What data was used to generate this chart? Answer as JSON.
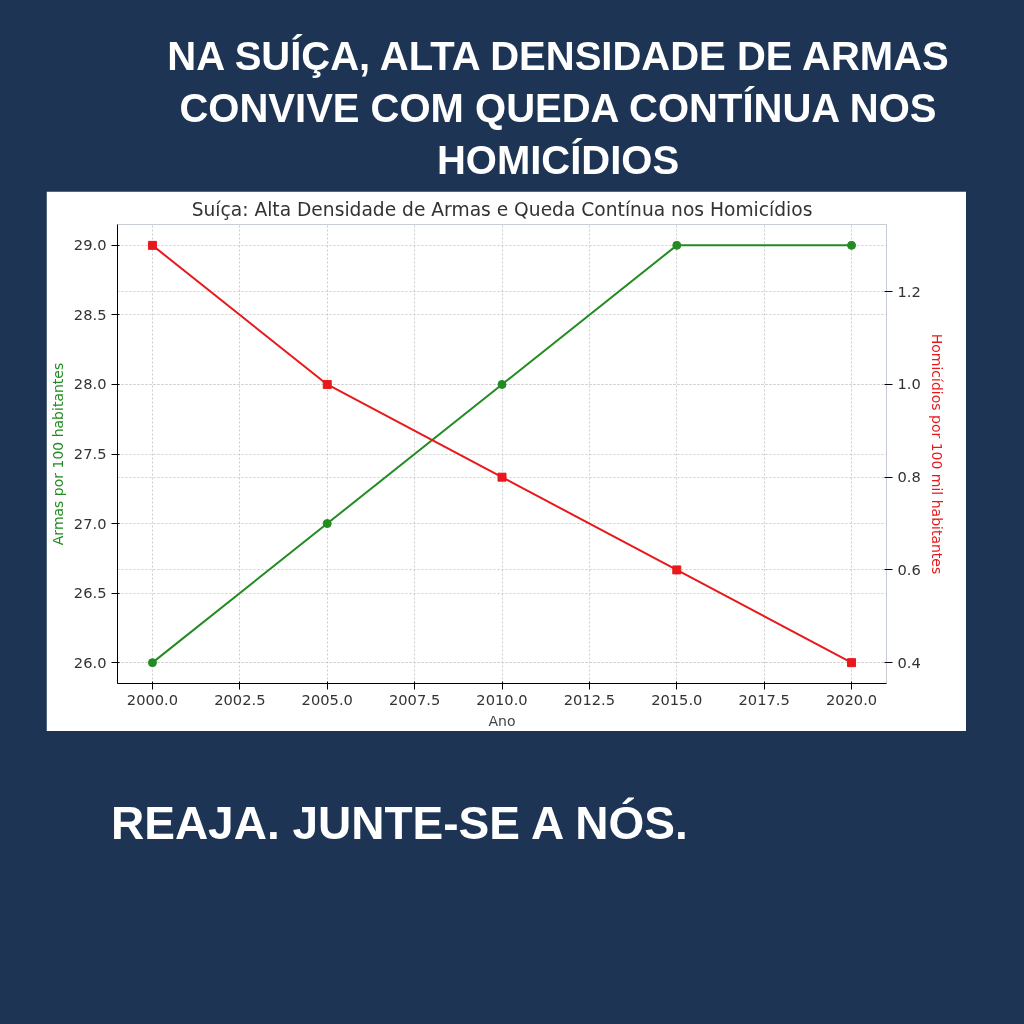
{
  "chart_data": {
    "type": "line",
    "title": "NA SUÍÇA, ALTA DENSIDADE DE ARMAS CONVIVE COM QUEDA CONTÍNUA NOS HOMICÍDIOS",
    "subtitle": "Suíça: Alta Densidade de Armas e Queda Contínua nos Homicídios",
    "xlabel": "Ano",
    "ylabel": "Armas por 100 habitantes",
    "y2label": "Homicídios por 100 mil habitantes",
    "annotations": [
      "REAJA. JUNTE-SE A NÓS."
    ],
    "x": [
      2000,
      2005,
      2010,
      2015,
      2020
    ],
    "series": [
      {
        "color": "#228b22",
        "values": [
          26,
          27,
          28,
          29,
          29
        ],
        "marker": "circle"
      },
      {
        "color": "#e8191c",
        "values": [
          1.3,
          1.0,
          0.8,
          0.6,
          0.4
        ],
        "marker": "square",
        "axis": "y2"
      }
    ],
    "xlim": [
      1999.0,
      2021.0
    ],
    "xticks": [
      {
        "value": 2000,
        "label": "2000.0"
      },
      {
        "value": 2002.5,
        "label": "2002.5"
      },
      {
        "value": 2005,
        "label": "2005.0"
      },
      {
        "value": 2007.5,
        "label": "2007.5"
      },
      {
        "value": 2010,
        "label": "2010.0"
      },
      {
        "value": 2012.5,
        "label": "2012.5"
      },
      {
        "value": 2015,
        "label": "2015.0"
      },
      {
        "value": 2017.5,
        "label": "2017.5"
      },
      {
        "value": 2020,
        "label": "2020.0"
      }
    ],
    "ylim": [
      25.85,
      29.15
    ],
    "yticks": [
      {
        "value": 26,
        "label": "26.0"
      },
      26.5,
      {
        "value": 27,
        "label": "27.0"
      },
      27.5,
      {
        "value": 28,
        "label": "28.0"
      },
      28.5,
      {
        "value": 29,
        "label": "29.0"
      }
    ],
    "y2lim": [
      0.355,
      1.345
    ],
    "y2ticks": [
      0.4,
      0.6,
      0.8,
      {
        "value": 1,
        "label": "1.0"
      },
      1.2
    ],
    "grid": true,
    "line_style": "solid"
  }
}
